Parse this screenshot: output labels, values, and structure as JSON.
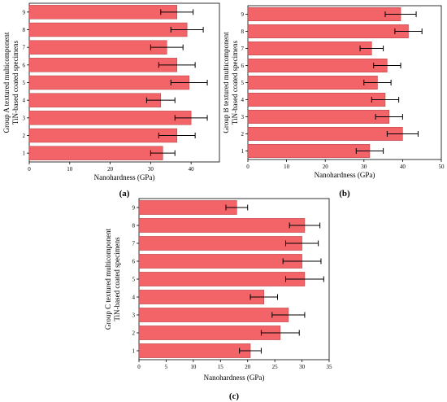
{
  "chart_data": [
    {
      "type": "bar",
      "orientation": "horizontal",
      "panel_label": "(a)",
      "xlabel": "Nanohardness (GPa)",
      "ylabel_lines": [
        "Group A textured multicomponent",
        "TiN-based coated specimens"
      ],
      "categories": [
        "1",
        "2",
        "3",
        "4",
        "5",
        "6",
        "7",
        "8",
        "9"
      ],
      "values": [
        33.0,
        36.5,
        40.0,
        32.5,
        39.5,
        36.5,
        34.0,
        39.0,
        36.5
      ],
      "errors": [
        3.0,
        4.5,
        4.0,
        3.5,
        4.5,
        4.5,
        4.0,
        4.0,
        4.0
      ],
      "xticks": [
        "0",
        "10",
        "20",
        "30",
        "40"
      ],
      "xlim": [
        0,
        47
      ],
      "bar_color": "#f26468",
      "grid": false
    },
    {
      "type": "bar",
      "orientation": "horizontal",
      "panel_label": "(b)",
      "xlabel": "Nanohardness (GPa)",
      "ylabel_lines": [
        "Group B textured multicomponent",
        "TiN-based coated specimens"
      ],
      "categories": [
        "1",
        "2",
        "3",
        "4",
        "5",
        "6",
        "7",
        "8",
        "9"
      ],
      "values": [
        31.5,
        40.0,
        36.5,
        35.5,
        33.5,
        36.0,
        32.0,
        41.5,
        39.5
      ],
      "errors": [
        3.5,
        4.0,
        3.5,
        3.5,
        3.5,
        3.5,
        3.0,
        3.5,
        4.0
      ],
      "xticks": [
        "0",
        "10",
        "20",
        "30",
        "40",
        "50"
      ],
      "xlim": [
        0,
        50
      ],
      "bar_color": "#f26468",
      "grid": false
    },
    {
      "type": "bar",
      "orientation": "horizontal",
      "panel_label": "(c)",
      "xlabel": "Nanohardness (GPa)",
      "ylabel_lines": [
        "Group C textured multicomponent",
        "TiN-based coated specimens"
      ],
      "categories": [
        "1",
        "2",
        "3",
        "4",
        "5",
        "6",
        "7",
        "8",
        "9"
      ],
      "values": [
        20.5,
        26.0,
        27.5,
        23.0,
        30.5,
        30.0,
        30.0,
        30.5,
        18.0
      ],
      "errors": [
        2.0,
        3.5,
        3.0,
        2.5,
        3.5,
        3.5,
        3.0,
        2.8,
        2.0
      ],
      "xticks": [
        "0",
        "5",
        "10",
        "15",
        "20",
        "25",
        "30",
        "35"
      ],
      "xlim": [
        0,
        35
      ],
      "bar_color": "#f26468",
      "grid": false
    }
  ]
}
